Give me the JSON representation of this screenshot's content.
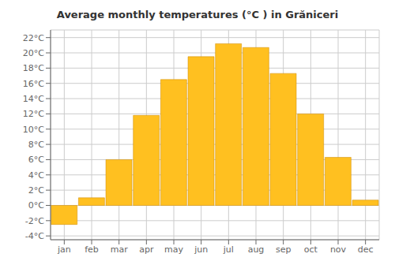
{
  "chart_data": {
    "type": "bar",
    "title": "Average monthly temperatures (°C ) in Grăniceri",
    "categories": [
      "jan",
      "feb",
      "mar",
      "apr",
      "may",
      "jun",
      "jul",
      "aug",
      "sep",
      "oct",
      "nov",
      "dec"
    ],
    "values": [
      -2.5,
      1.0,
      6.0,
      11.8,
      16.5,
      19.5,
      21.2,
      20.7,
      17.3,
      12.0,
      6.3,
      0.7
    ],
    "color": "#FFC020",
    "ylim": [
      -4.5,
      23
    ],
    "yticks": [
      {
        "value": -4,
        "label": "-4°C"
      },
      {
        "value": -2,
        "label": "-2°C"
      },
      {
        "value": 0,
        "label": "0°C"
      },
      {
        "value": 2,
        "label": "2°C"
      },
      {
        "value": 4,
        "label": "4°C"
      },
      {
        "value": 6,
        "label": "6°C"
      },
      {
        "value": 8,
        "label": "8°C"
      },
      {
        "value": 10,
        "label": "10°C"
      },
      {
        "value": 12,
        "label": "12°C"
      },
      {
        "value": 14,
        "label": "14°C"
      },
      {
        "value": 16,
        "label": "16°C"
      },
      {
        "value": 18,
        "label": "18°C"
      },
      {
        "value": 20,
        "label": "20°C"
      },
      {
        "value": 22,
        "label": "22°C"
      }
    ],
    "grid": true
  }
}
